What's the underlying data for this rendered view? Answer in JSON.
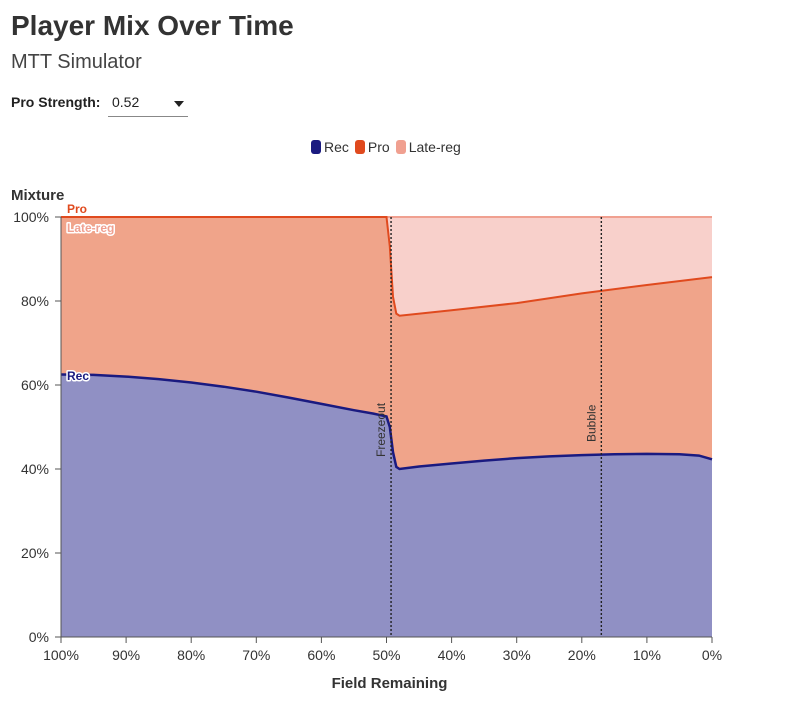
{
  "header": {
    "title": "Player Mix Over Time",
    "subtitle": "MTT Simulator"
  },
  "controls": {
    "pro_strength_label": "Pro Strength:",
    "pro_strength_value": "0.52"
  },
  "colors": {
    "rec": "#1a1a80",
    "pro": "#e04a1e",
    "late_reg": "#f0a090",
    "rec_fill": "#9090c4",
    "pro_fill": "#f0a48a",
    "late_reg_fill": "#f8d0cb"
  },
  "chart_data": {
    "type": "area",
    "title": "Player Mix Over Time",
    "xlabel": "Field Remaining",
    "ylabel": "Mixture",
    "xlim": [
      100,
      0
    ],
    "ylim": [
      0,
      100
    ],
    "x_tick_labels": [
      "100%",
      "90%",
      "80%",
      "70%",
      "60%",
      "50%",
      "40%",
      "30%",
      "20%",
      "10%",
      "0%"
    ],
    "y_tick_labels": [
      "0%",
      "20%",
      "40%",
      "60%",
      "80%",
      "100%"
    ],
    "legend": [
      {
        "name": "Rec",
        "color": "#1a1a80"
      },
      {
        "name": "Pro",
        "color": "#e04a1e"
      },
      {
        "name": "Late-reg",
        "color": "#f0a090"
      }
    ],
    "series": [
      {
        "name": "Rec",
        "description": "cumulative boundary (Rec share)",
        "x": [
          100,
          95,
          90,
          85,
          80,
          75,
          70,
          65,
          60,
          55,
          52,
          50,
          49.5,
          49,
          48.5,
          48,
          45,
          40,
          35,
          30,
          25,
          20,
          15,
          10,
          5,
          2,
          0
        ],
        "values": [
          62.5,
          62.4,
          62,
          61.4,
          60.6,
          59.6,
          58.4,
          57,
          55.5,
          54,
          53.2,
          52.5,
          50,
          44,
          40.5,
          40,
          40.6,
          41.3,
          42,
          42.6,
          43,
          43.3,
          43.5,
          43.6,
          43.5,
          43.2,
          42.3
        ]
      },
      {
        "name": "Pro",
        "description": "cumulative boundary (Rec + Pro share)",
        "x": [
          100,
          52,
          50,
          49.5,
          49,
          48.5,
          48,
          40,
          30,
          20,
          10,
          0
        ],
        "values": [
          100,
          100,
          100,
          93,
          81,
          77,
          76.5,
          77.8,
          79.5,
          81.8,
          83.8,
          85.7
        ]
      },
      {
        "name": "Late-reg",
        "description": "cumulative boundary (total)",
        "x": [
          100,
          0
        ],
        "values": [
          100,
          100
        ]
      }
    ],
    "annotations": [
      {
        "label": "Freezeout",
        "x": 49.3
      },
      {
        "label": "Bubble",
        "x": 17
      }
    ],
    "line_labels": {
      "pro": "Pro",
      "late_reg": "Late-reg",
      "rec": "Rec"
    }
  }
}
